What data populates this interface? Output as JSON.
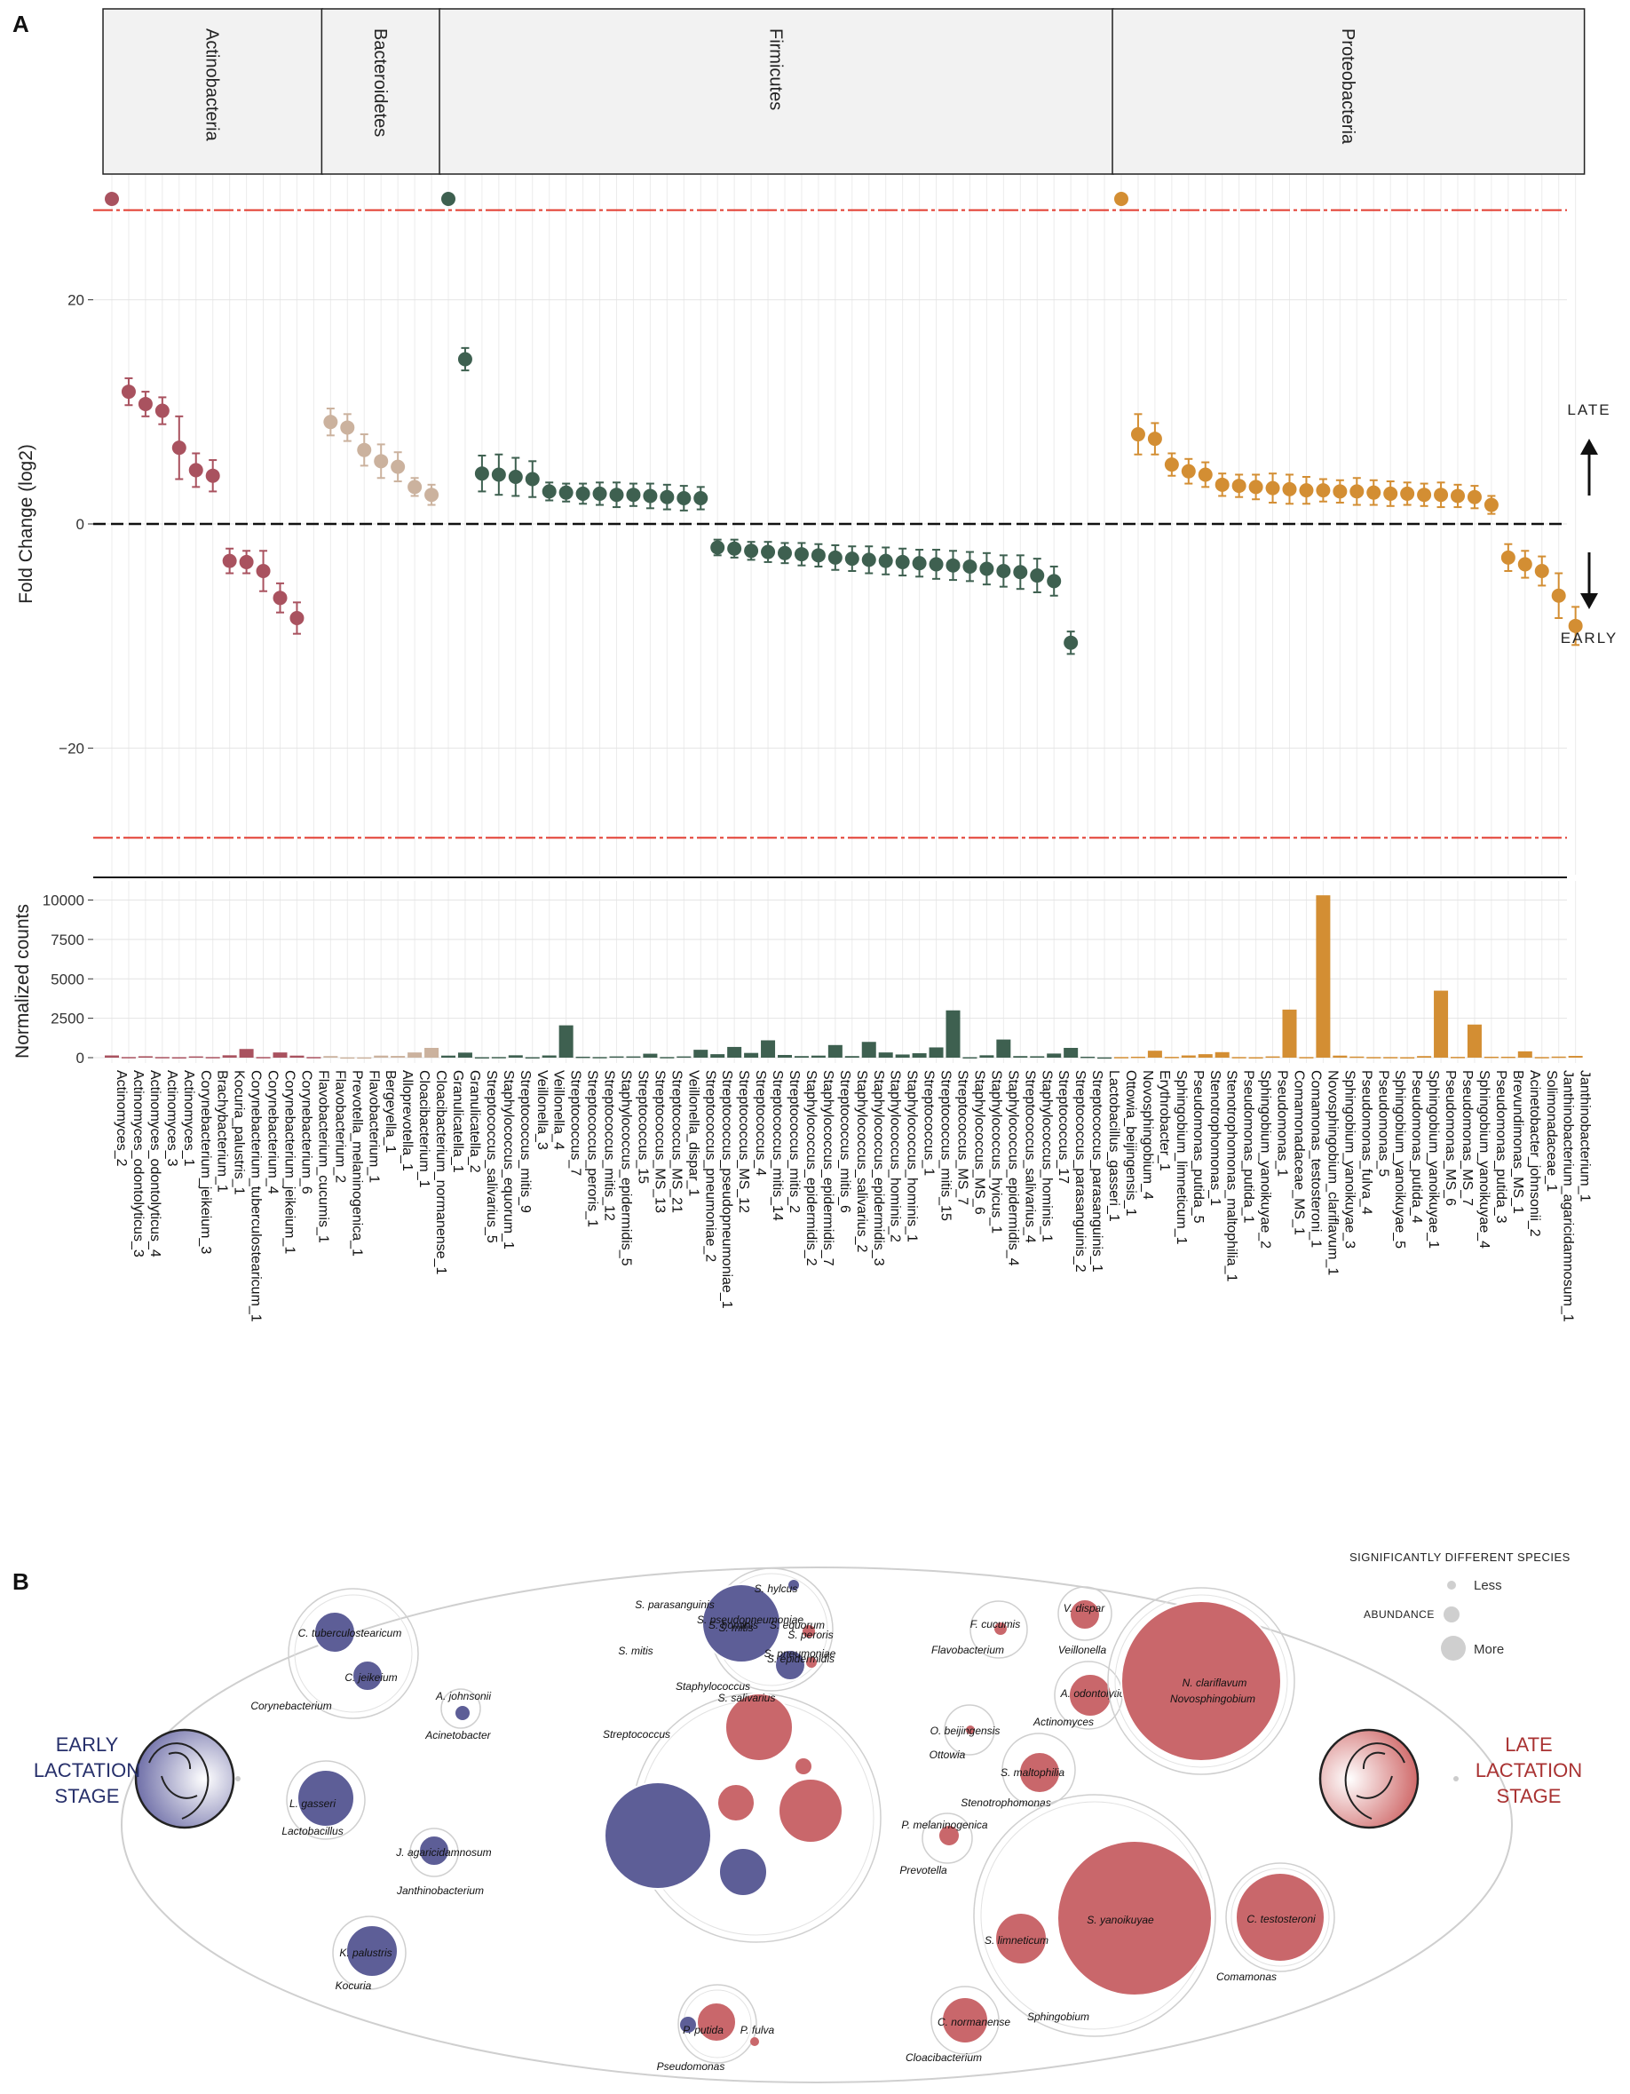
{
  "panels": {
    "a": "A",
    "b": "B"
  },
  "colors": {
    "Actinobacteria": "#a9525f",
    "Bacteroidetes": "#cbb29e",
    "Firmicutes": "#3e6050",
    "Proteobacteria": "#d38e33",
    "early": "#5d5e97",
    "late": "#c9676b",
    "early_text": "#27306b",
    "late_text": "#a93232",
    "threshold": "#e23b2f"
  },
  "chart_data": [
    {
      "type": "scatter",
      "title": "",
      "ylabel": "Fold Change (log2)",
      "xlabel": "",
      "ylim": [
        -32,
        32
      ],
      "yticks": [
        20,
        0,
        -20
      ],
      "ytick_labels": [
        "20",
        "0",
        "−20"
      ],
      "threshold_lines": [
        28,
        -28
      ],
      "zero_line": 0,
      "capped_value": 29,
      "right_annotations": {
        "late": "LATE",
        "early": "EARLY"
      },
      "phyla": [
        {
          "name": "Actinobacteria",
          "start": 0,
          "count": 13
        },
        {
          "name": "Bacteroidetes",
          "start": 13,
          "count": 7
        },
        {
          "name": "Firmicutes",
          "start": 20,
          "count": 40
        },
        {
          "name": "Proteobacteria",
          "start": 60,
          "count": 28
        }
      ],
      "categories": [
        "Actinomyces_2",
        "Actinomyces_odontolyticus_3",
        "Actinomyces_odontolyticus_4",
        "Actinomyces_3",
        "Actinomyces_1",
        "Corynebacterium_jeikeium_3",
        "Brachybacterium_1",
        "Kocuria_palustris_1",
        "Corynebacterium_tuberculostearicum_1",
        "Corynebacterium_4",
        "Corynebacterium_jeikeium_1",
        "Corynebacterium_6",
        "Flavobacterium_cucumis_1",
        "Flavobacterium_2",
        "Prevotella_melaninogenica_1",
        "Flavobacterium_1",
        "Bergeyella_1",
        "Alloprevotella_1",
        "Cloacibacterium_1",
        "Cloacibacterium_normanense_1",
        "Granulicatella_1",
        "Granulicatella_2",
        "Streptococcus_salivarius_5",
        "Staphylococcus_equorum_1",
        "Streptococcus_mitis_9",
        "Veillonella_3",
        "Veillonella_4",
        "Streptococcus_7",
        "Streptococcus_peroris_1",
        "Streptococcus_mitis_12",
        "Staphylococcus_epidermidis_5",
        "Streptococcus_15",
        "Streptococcus_MS_13",
        "Streptococcus_MS_21",
        "Veillonella_dispar_1",
        "Streptococcus_pneumoniae_2",
        "Streptococcus_pseudopneumoniae_1",
        "Streptococcus_MS_12",
        "Streptococcus_4",
        "Streptococcus_mitis_14",
        "Streptococcus_mitis_2",
        "Staphylococcus_epidermidis_2",
        "Staphylococcus_epidermidis_7",
        "Streptococcus_mitis_6",
        "Staphylococcus_salivarius_2",
        "Staphylococcus_epidermidis_3",
        "Staphylococcus_hominis_2",
        "Staphylococcus_hominis_1",
        "Streptococcus_1",
        "Streptococcus_mitis_15",
        "Streptococcus_MS_7",
        "Staphylococcus_MS_6",
        "Staphylococcus_hyicus_1",
        "Staphylococcus_epidermidis_4",
        "Streptococcus_salivarius_4",
        "Staphylococcus_hominis_1",
        "Streptococcus_17",
        "Streptococcus_parasanguinis_2",
        "Streptococcus_parasanguinis_1",
        "Lactobacillus_gasseri_1",
        "Ottowia_beijingensis_1",
        "Novosphingobium_4",
        "Erythrobacter_1",
        "Sphingobium_limneticum_1",
        "Pseudomonas_putida_5",
        "Stenotrophomonas_1",
        "Stenotrophomonas_maltophilia_1",
        "Pseudomonas_putida_1",
        "Sphingobium_yanoikuyae_2",
        "Pseudomonas_1",
        "Comamonadaceae_MS_1",
        "Comamonas_testosteroni_1",
        "Novosphingobium_clariflavum_1",
        "Sphingobium_yanoikuyae_3",
        "Pseudomonas_fulva_4",
        "Pseudomonas_5",
        "Sphingobium_yanoikuyae_5",
        "Pseudomonas_putida_4",
        "Sphingobium_yanoikuyae_1",
        "Pseudomonas_MS_6",
        "Pseudomonas_MS_7",
        "Sphingobium_yanoikuyae_4",
        "Pseudomonas_putida_3",
        "Brevundimonas_MS_1",
        "Acinetobacter_johnsonii_2",
        "Solimonadaceae_1",
        "Janthinobacterium_agaricidamnosum_1",
        "Janthinobacterium_1"
      ],
      "fold_change": [
        29,
        11.8,
        10.7,
        10.1,
        6.8,
        4.8,
        4.3,
        -3.3,
        -3.4,
        -4.2,
        -6.6,
        -8.4,
        null,
        9.1,
        8.6,
        6.6,
        5.6,
        5.1,
        3.3,
        2.6,
        29,
        14.7,
        4.5,
        4.4,
        4.2,
        4.0,
        2.9,
        2.8,
        2.7,
        2.7,
        2.6,
        2.6,
        2.5,
        2.4,
        2.3,
        2.3,
        -2.1,
        -2.2,
        -2.4,
        -2.5,
        -2.6,
        -2.7,
        -2.8,
        -3.0,
        -3.1,
        -3.2,
        -3.3,
        -3.4,
        -3.5,
        -3.6,
        -3.7,
        -3.8,
        -4.0,
        -4.2,
        -4.3,
        -4.6,
        -5.1,
        -10.6,
        null,
        null,
        29,
        8.0,
        7.6,
        5.3,
        4.7,
        4.4,
        3.5,
        3.4,
        3.3,
        3.2,
        3.1,
        3.0,
        3.0,
        2.9,
        2.9,
        2.8,
        2.7,
        2.7,
        2.6,
        2.6,
        2.5,
        2.4,
        1.7,
        -3.0,
        -3.6,
        -4.2,
        -6.4,
        -9.1
      ],
      "error": [
        0,
        1.2,
        1.1,
        1.2,
        2.8,
        1.5,
        1.4,
        1.1,
        1.0,
        1.8,
        1.3,
        1.4,
        0,
        1.2,
        1.2,
        1.4,
        1.5,
        1.3,
        0.8,
        0.9,
        0,
        1.0,
        1.6,
        1.8,
        1.7,
        1.6,
        0.8,
        0.8,
        0.9,
        1.0,
        1.1,
        1.0,
        1.1,
        1.1,
        1.1,
        1.0,
        0.7,
        0.8,
        0.8,
        0.9,
        0.9,
        1.0,
        1.0,
        1.1,
        1.1,
        1.2,
        1.2,
        1.2,
        1.2,
        1.3,
        1.3,
        1.3,
        1.4,
        1.4,
        1.5,
        1.5,
        1.3,
        1.0,
        0,
        0,
        0,
        1.8,
        1.4,
        1.0,
        1.1,
        1.1,
        1.0,
        1.0,
        1.1,
        1.3,
        1.3,
        1.2,
        1.0,
        1.0,
        1.2,
        1.1,
        1.1,
        1.0,
        1.0,
        1.1,
        1.0,
        1.0,
        0.8,
        1.2,
        1.2,
        1.3,
        2.0,
        1.7
      ]
    },
    {
      "type": "bar",
      "ylabel": "Normalized counts",
      "ylim": [
        0,
        10500
      ],
      "yticks": [
        0,
        2500,
        5000,
        7500,
        10000
      ],
      "values": [
        140,
        40,
        90,
        40,
        30,
        80,
        40,
        150,
        550,
        40,
        330,
        130,
        40,
        100,
        20,
        20,
        130,
        110,
        330,
        620,
        130,
        320,
        30,
        40,
        150,
        30,
        140,
        2050,
        60,
        40,
        80,
        80,
        250,
        40,
        80,
        500,
        220,
        680,
        300,
        1100,
        170,
        100,
        130,
        800,
        100,
        1000,
        330,
        200,
        280,
        650,
        3000,
        30,
        150,
        1150,
        100,
        90,
        260,
        620,
        60,
        20,
        40,
        60,
        440,
        50,
        140,
        220,
        350,
        40,
        30,
        80,
        3050,
        40,
        10300,
        130,
        70,
        40,
        40,
        30,
        100,
        4250,
        50,
        2100,
        60,
        60,
        400,
        40,
        70,
        110
      ]
    }
  ],
  "bubble": {
    "legend": {
      "title": "SIGNIFICANTLY DIFFERENT SPECIES",
      "abundance": "ABUNDANCE",
      "less": "Less",
      "more": "More"
    },
    "early_stage": [
      "EARLY",
      "LACTATION",
      "STAGE"
    ],
    "late_stage": [
      "LATE",
      "LACTATION",
      "STAGE"
    ],
    "groups": [
      {
        "genus": "Corynebacterium",
        "species": [
          {
            "label": "C. tuberculostearicum",
            "stage": "early"
          },
          {
            "label": "C. jeikeium",
            "stage": "early"
          }
        ]
      },
      {
        "genus": "Acinetobacter",
        "species": [
          {
            "label": "A. johnsonii",
            "stage": "early"
          }
        ]
      },
      {
        "genus": "Lactobacillus",
        "species": [
          {
            "label": "L. gasseri",
            "stage": "early"
          }
        ]
      },
      {
        "genus": "Janthinobacterium",
        "species": [
          {
            "label": "J. agaricidamnosum",
            "stage": "early"
          }
        ]
      },
      {
        "genus": "Kocuria",
        "species": [
          {
            "label": "K. palustris",
            "stage": "early"
          }
        ]
      },
      {
        "genus": "Staphylococcus",
        "species": [
          {
            "label": "S. hylcus",
            "stage": "early"
          },
          {
            "label": "S. hominis",
            "stage": "early"
          },
          {
            "label": "S. equorum",
            "stage": "late"
          },
          {
            "label": "S. epidermidis",
            "stage": "early"
          }
        ]
      },
      {
        "genus": "Streptococcus",
        "species": [
          {
            "label": "S. parasanguinis",
            "stage": "early"
          },
          {
            "label": "S. pseudopneumoniae",
            "stage": "late"
          },
          {
            "label": "S. pneumoniae",
            "stage": "late"
          },
          {
            "label": "S. mitis",
            "stage": "early"
          },
          {
            "label": "S. mitis",
            "stage": "late"
          },
          {
            "label": "S. peroris",
            "stage": "late"
          },
          {
            "label": "S. salivarius",
            "stage": "early"
          }
        ]
      },
      {
        "genus": "Pseudomonas",
        "species": [
          {
            "label": "P. putida",
            "stage": "late"
          },
          {
            "label": "P. fulva",
            "stage": "late"
          }
        ]
      },
      {
        "genus": "Flavobacterium",
        "species": [
          {
            "label": "F. cucumis",
            "stage": "late"
          }
        ]
      },
      {
        "genus": "Veillonella",
        "species": [
          {
            "label": "V. dispar",
            "stage": "late"
          }
        ]
      },
      {
        "genus": "Actinomyces",
        "species": [
          {
            "label": "A. odontolyticus",
            "stage": "late"
          }
        ]
      },
      {
        "genus": "Ottowia",
        "species": [
          {
            "label": "O. beijingensis",
            "stage": "late"
          }
        ]
      },
      {
        "genus": "Stenotrophomonas",
        "species": [
          {
            "label": "S. maltophilia",
            "stage": "late"
          }
        ]
      },
      {
        "genus": "Prevotella",
        "species": [
          {
            "label": "P. melaninogenica",
            "stage": "late"
          }
        ]
      },
      {
        "genus": "Novosphingobium",
        "species": [
          {
            "label": "N. clariflavum",
            "stage": "late"
          }
        ]
      },
      {
        "genus": "Sphingobium",
        "species": [
          {
            "label": "S. limneticum",
            "stage": "late"
          },
          {
            "label": "S. yanoikuyae",
            "stage": "late"
          }
        ]
      },
      {
        "genus": "Comamonas",
        "species": [
          {
            "label": "C. testosteroni",
            "stage": "late"
          }
        ]
      },
      {
        "genus": "Cloacibacterium",
        "species": [
          {
            "label": "C. normanense",
            "stage": "late"
          }
        ]
      }
    ]
  }
}
